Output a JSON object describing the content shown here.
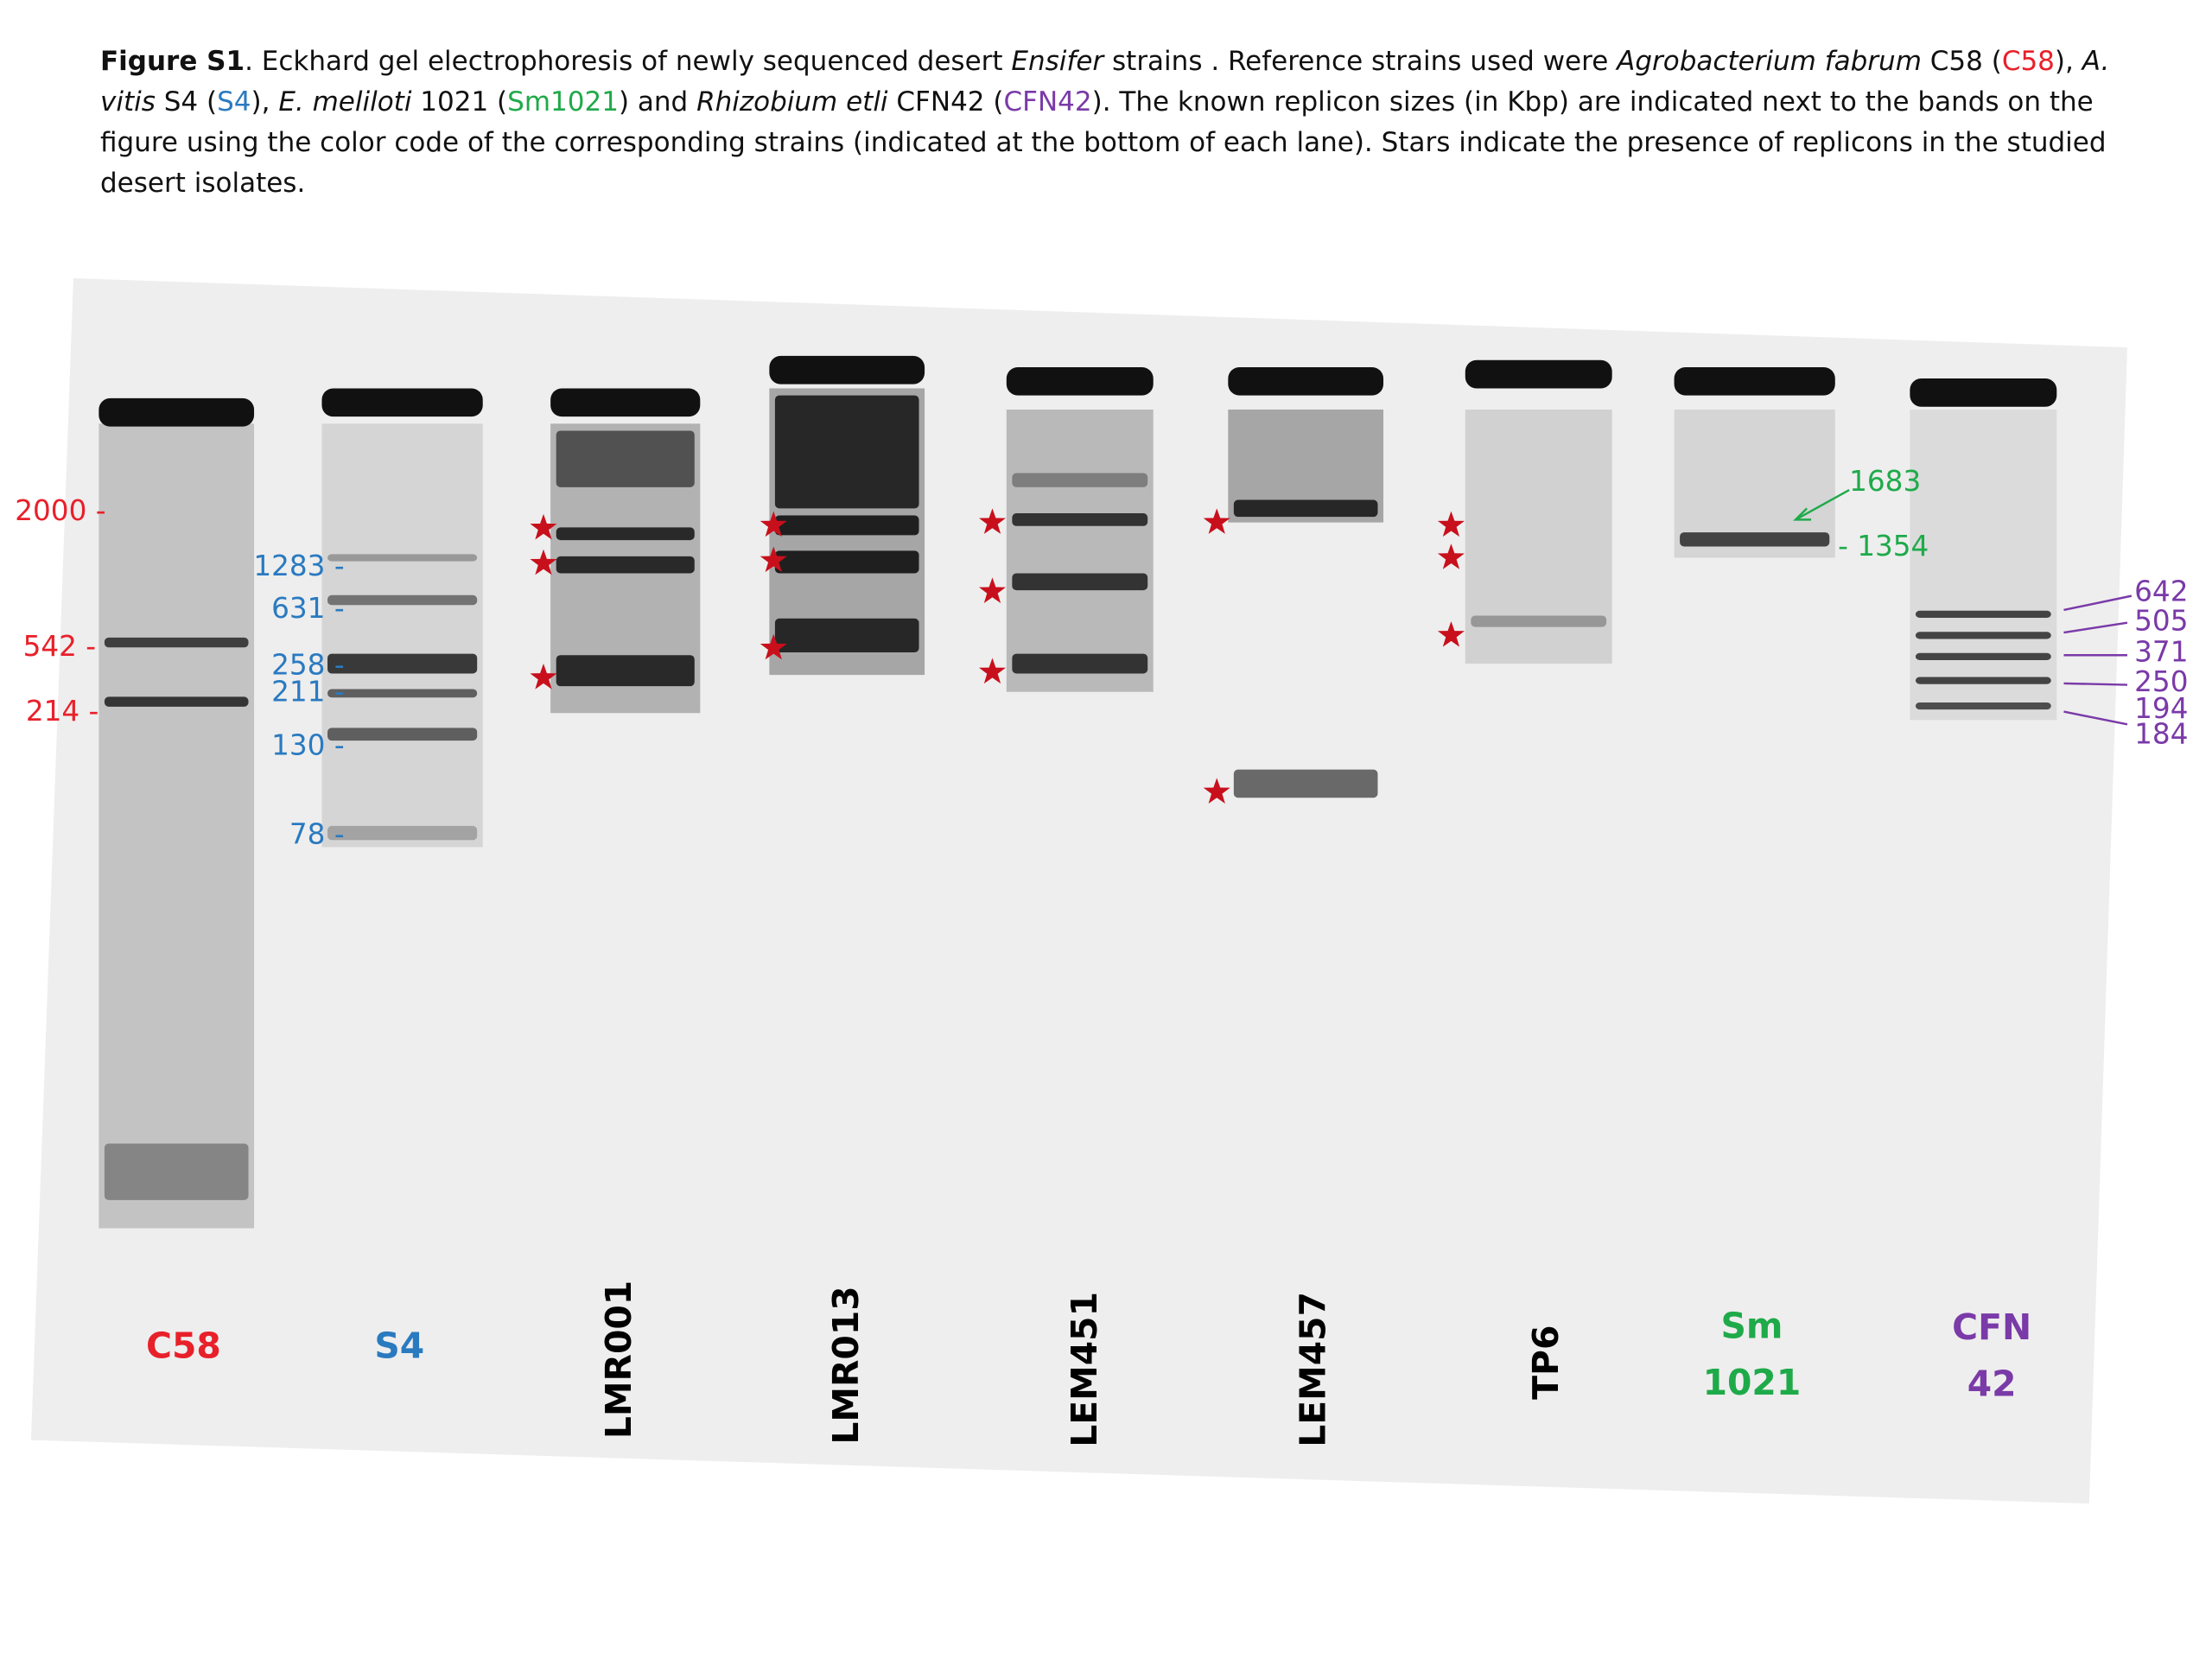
{
  "caption": {
    "parts": [
      "Figure S1",
      ". Eckhard gel electrophoresis  of newly sequenced desert ",
      "Ensifer",
      " strains . Reference strains  used were ",
      "Agrobacterium  fabrum",
      " C58  (",
      "C58",
      "), ",
      "A. vitis",
      " S4 (",
      "S4",
      "),  ",
      "E. meliloti",
      "  1021 (",
      "Sm1021",
      ") and ",
      "Rhizobium etli",
      " CFN42  (",
      "CFN42",
      ").  The known replicon sizes (in Kbp) are indicated  next to the bands on the figure  using the color code of the corresponding strains (indicated at the bottom of each lane).  Stars indicate the presence of replicons in the studied desert isolates."
    ]
  },
  "lanes": [
    "C58",
    "S4",
    "LMR001",
    "LMR013",
    "LEM451",
    "LEM457",
    "TP6",
    "Sm",
    "1021",
    "CFN",
    "42"
  ],
  "markers": {
    "c58": [
      "2000 -",
      "542 -",
      "214 -"
    ],
    "s4": [
      "1283 -",
      "631 -",
      "258 -",
      "211 -",
      "130 -",
      "78 -"
    ],
    "sm1021": [
      "1683",
      "- 1354"
    ],
    "cfn42": [
      "642",
      "505",
      "371",
      "250",
      "194",
      "184"
    ]
  }
}
